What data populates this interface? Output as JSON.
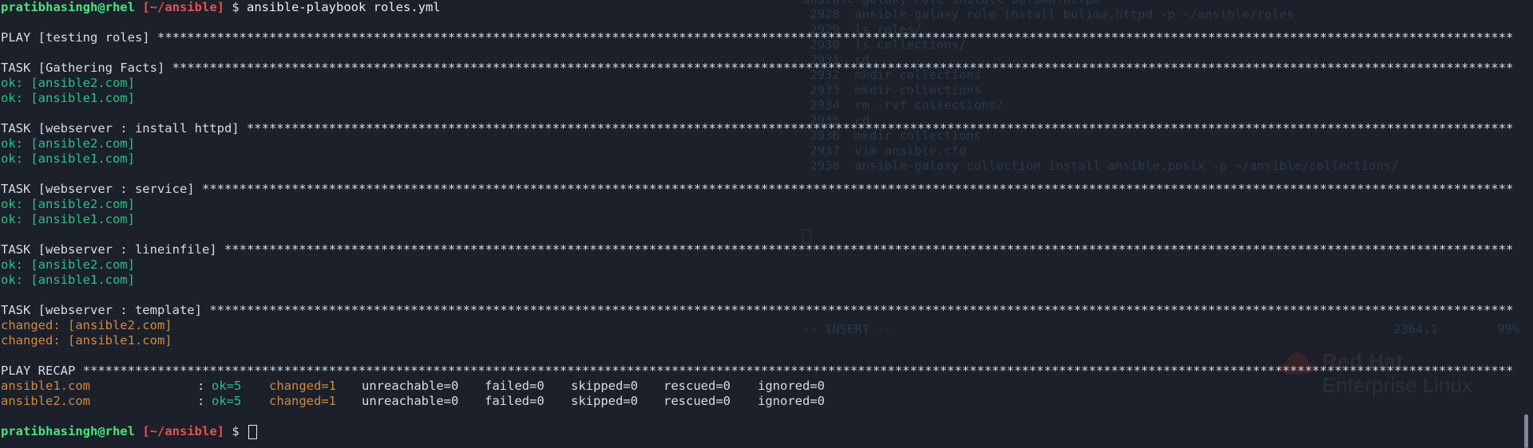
{
  "prompt": {
    "user_host": "pratibhasingh@rhel",
    "path": "[~/ansible]",
    "symbol": "$"
  },
  "command": "ansible-playbook roles.yml",
  "play_header": "PLAY [testing roles]",
  "tasks": [
    {
      "header": "TASK [Gathering Facts]",
      "results": [
        {
          "status": "ok",
          "text": "ok: [ansible2.com]"
        },
        {
          "status": "ok",
          "text": "ok: [ansible1.com]"
        }
      ]
    },
    {
      "header": "TASK [webserver : install httpd]",
      "results": [
        {
          "status": "ok",
          "text": "ok: [ansible2.com]"
        },
        {
          "status": "ok",
          "text": "ok: [ansible1.com]"
        }
      ]
    },
    {
      "header": "TASK [webserver : service]",
      "results": [
        {
          "status": "ok",
          "text": "ok: [ansible2.com]"
        },
        {
          "status": "ok",
          "text": "ok: [ansible1.com]"
        }
      ]
    },
    {
      "header": "TASK [webserver : lineinfile]",
      "results": [
        {
          "status": "ok",
          "text": "ok: [ansible2.com]"
        },
        {
          "status": "ok",
          "text": "ok: [ansible1.com]"
        }
      ]
    },
    {
      "header": "TASK [webserver : template]",
      "results": [
        {
          "status": "changed",
          "text": "changed: [ansible2.com]"
        },
        {
          "status": "changed",
          "text": "changed: [ansible1.com]"
        }
      ]
    }
  ],
  "recap_header": "PLAY RECAP",
  "recap": [
    {
      "host": "ansible1.com",
      "sep": ":",
      "ok": "ok=5",
      "changed": "changed=1",
      "unreachable": "unreachable=0",
      "failed": "failed=0",
      "skipped": "skipped=0",
      "rescued": "rescued=0",
      "ignored": "ignored=0"
    },
    {
      "host": "ansible2.com",
      "sep": ":",
      "ok": "ok=5",
      "changed": "changed=1",
      "unreachable": "unreachable=0",
      "failed": "failed=0",
      "skipped": "skipped=0",
      "rescued": "rescued=0",
      "ignored": "ignored=0"
    }
  ],
  "background_window": {
    "history_lines": [
      "ansible-galaxy role install bulima.httpd",
      " 2928  ansible-galaxy role install bulima.httpd -p ~/ansible/roles",
      " 2929  ls roles/",
      " 2930  ls collections/",
      " 2931  cd",
      " 2932  mkdir collections",
      " 2933  mkdir collections",
      " 2934  rm -rvf collections/",
      " 2935  cd",
      " 2936  mkdir collections",
      " 2937  vim ansible.cfg",
      " 2938  ansible-galaxy collection install ansible.posix -p ~/ansible/collections/"
    ],
    "mode": "-- INSERT --",
    "position": "2364,1",
    "percent": "99%"
  },
  "brand": {
    "name_top": "Red Hat",
    "name_bottom": "Enterprise Linux"
  },
  "colors": {
    "background": "#1b202b",
    "prompt_user": "#4ee17f",
    "prompt_path": "#e4524f",
    "ok": "#2fbf8a",
    "changed": "#d08a44",
    "text": "#d8dce4"
  }
}
